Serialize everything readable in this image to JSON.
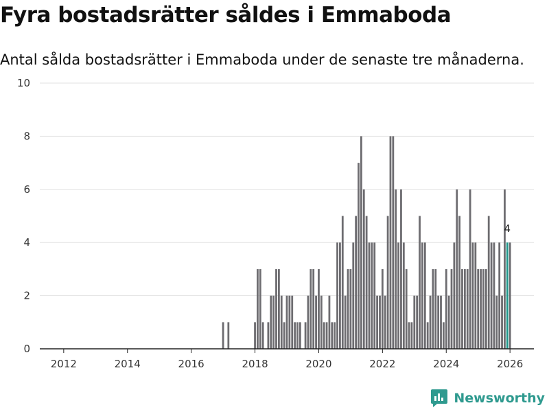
{
  "title": "Fyra bostadsrätter såldes i Emmaboda",
  "subtitle": "Antal sålda bostadsrätter i Emmaboda under de senaste tre månaderna.",
  "brand": {
    "name": "Newsworthy",
    "icon": "newsworthy-logo-icon"
  },
  "colors": {
    "bar": "#6d6c70",
    "highlight": "#1c9689",
    "grid": "#e1e1e1",
    "axis": "#222222"
  },
  "chart_data": {
    "type": "bar",
    "title": "Fyra bostadsrätter såldes i Emmaboda",
    "subtitle": "Antal sålda bostadsrätter i Emmaboda under de senaste tre månaderna.",
    "xlabel": "",
    "ylabel": "",
    "ylim": [
      0,
      10
    ],
    "yticks": [
      0,
      2,
      4,
      6,
      8,
      10
    ],
    "xlim": [
      2011.25,
      2026.75
    ],
    "xticks": [
      2012,
      2014,
      2016,
      2018,
      2020,
      2022,
      2024,
      2026
    ],
    "start_month": "2017-01",
    "values": [
      1,
      0,
      1,
      0,
      0,
      0,
      0,
      0,
      0,
      0,
      0,
      0,
      1,
      3,
      3,
      1,
      0,
      1,
      2,
      2,
      3,
      3,
      2,
      1,
      2,
      2,
      2,
      1,
      1,
      1,
      0,
      1,
      2,
      3,
      3,
      2,
      3,
      2,
      1,
      1,
      2,
      1,
      1,
      4,
      4,
      5,
      2,
      3,
      3,
      4,
      5,
      7,
      8,
      6,
      5,
      4,
      4,
      4,
      2,
      2,
      3,
      2,
      5,
      8,
      8,
      6,
      4,
      6,
      4,
      3,
      1,
      1,
      2,
      2,
      5,
      4,
      4,
      1,
      2,
      3,
      3,
      2,
      2,
      1,
      3,
      2,
      3,
      4,
      6,
      5,
      3,
      3,
      3,
      6,
      4,
      4,
      3,
      3,
      3,
      3,
      5,
      4,
      4,
      2,
      4,
      2,
      6,
      4,
      4
    ],
    "highlight": {
      "month": "2025-12",
      "value": 4,
      "label": "4"
    },
    "grid": true
  }
}
